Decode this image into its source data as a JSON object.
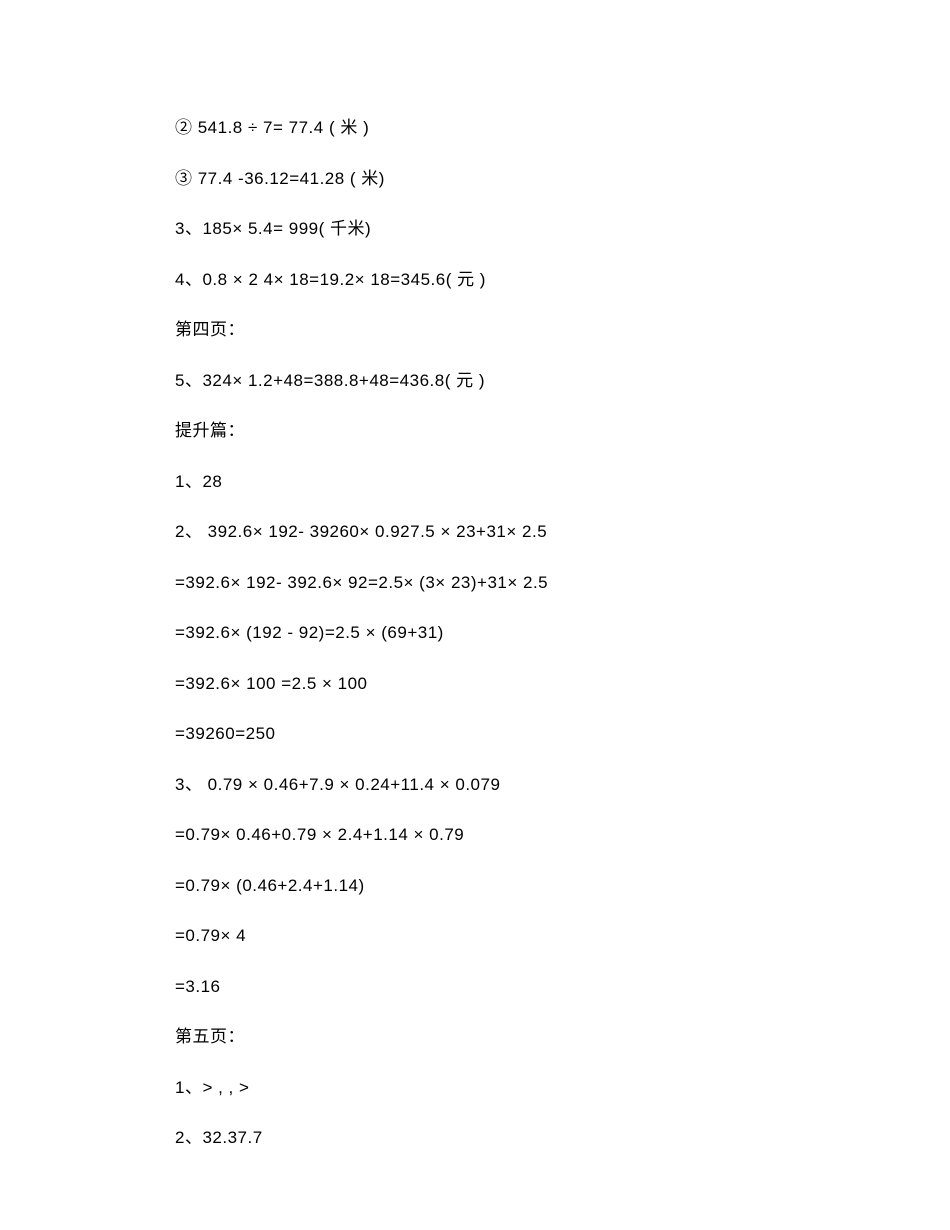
{
  "lines": [
    "② 541.8 ÷ 7= 77.4 (  米 )",
    "③ 77.4 -36.12=41.28 (  米)",
    "3、185× 5.4= 999( 千米)",
    "4、0.8 × 2 4× 18=19.2× 18=345.6( 元 )",
    "第四页：",
    "5、324× 1.2+48=388.8+48=436.8( 元 )",
    "提升篇：",
    "1、28",
    "2、 392.6× 192- 39260× 0.927.5 × 23+31× 2.5",
    "=392.6× 192- 392.6× 92=2.5× (3× 23)+31× 2.5",
    "=392.6× (192 - 92)=2.5 × (69+31)",
    "=392.6× 100 =2.5 × 100",
    "=39260=250",
    "3、 0.79 × 0.46+7.9 × 0.24+11.4 × 0.079",
    "=0.79× 0.46+0.79 × 2.4+1.14 × 0.79",
    "=0.79× (0.46+2.4+1.14)",
    "=0.79× 4",
    "=3.16",
    "第五页：",
    "1、> ,  , >",
    "2、32.37.7"
  ]
}
